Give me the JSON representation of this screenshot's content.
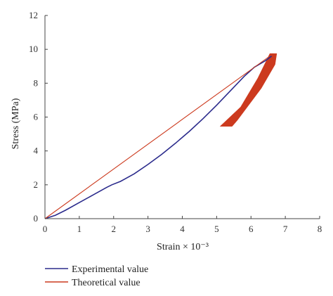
{
  "chart_data": {
    "type": "line",
    "title": "",
    "xlabel": "Strain × 10⁻³",
    "ylabel": "Stress (MPa)",
    "xlim": [
      0,
      8
    ],
    "ylim": [
      0,
      12
    ],
    "xticks": [
      0,
      1,
      2,
      3,
      4,
      5,
      6,
      7,
      8
    ],
    "yticks": [
      0,
      2,
      4,
      6,
      8,
      10,
      12
    ],
    "grid": false,
    "legend_position": "bottom-left",
    "series": [
      {
        "name": "Experimental value",
        "color": "#2b2b8c",
        "points": [
          [
            0,
            0
          ],
          [
            0.3,
            0.2
          ],
          [
            0.6,
            0.5
          ],
          [
            1.0,
            0.95
          ],
          [
            1.4,
            1.4
          ],
          [
            1.8,
            1.85
          ],
          [
            1.95,
            2.0
          ],
          [
            2.2,
            2.2
          ],
          [
            2.6,
            2.65
          ],
          [
            3.0,
            3.2
          ],
          [
            3.4,
            3.8
          ],
          [
            3.8,
            4.45
          ],
          [
            4.2,
            5.15
          ],
          [
            4.6,
            5.9
          ],
          [
            5.0,
            6.7
          ],
          [
            5.4,
            7.55
          ],
          [
            5.8,
            8.4
          ],
          [
            6.1,
            8.95
          ],
          [
            6.4,
            9.3
          ],
          [
            6.6,
            9.6
          ]
        ]
      },
      {
        "name": "Theoretical value",
        "color": "#cc3a1e",
        "points": [
          [
            0,
            0
          ],
          [
            6.65,
            9.75
          ]
        ]
      }
    ],
    "unloading_band": {
      "color": "#cc3a1e",
      "polygon": [
        [
          6.55,
          9.75
        ],
        [
          6.75,
          9.75
        ],
        [
          6.7,
          9.1
        ],
        [
          6.3,
          7.7
        ],
        [
          5.6,
          5.8
        ],
        [
          5.45,
          5.45
        ],
        [
          5.1,
          5.45
        ],
        [
          5.7,
          6.6
        ],
        [
          6.2,
          8.3
        ]
      ]
    }
  }
}
